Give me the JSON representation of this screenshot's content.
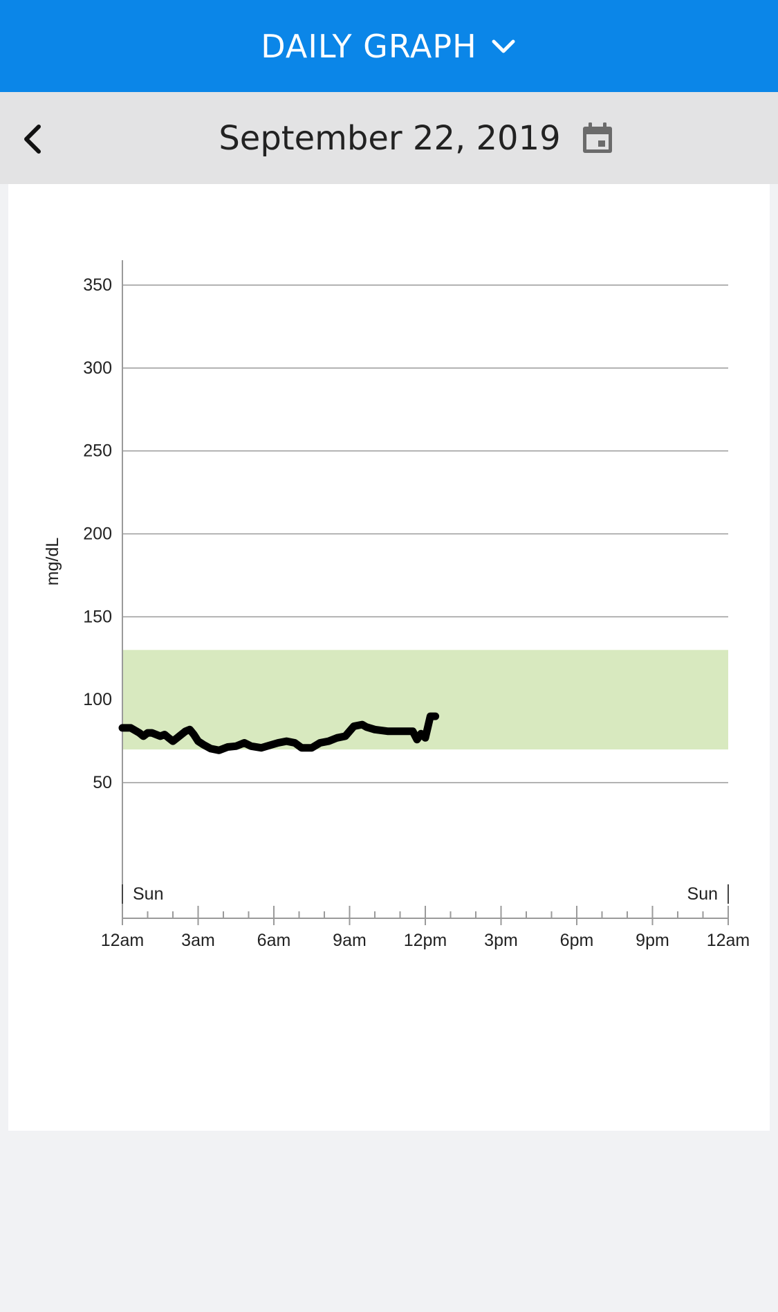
{
  "header": {
    "title": "DAILY GRAPH",
    "dropdown_icon": "chevron-down-icon"
  },
  "datebar": {
    "date": "September 22, 2019",
    "back_icon": "chevron-left-icon",
    "calendar_icon": "calendar-icon"
  },
  "colors": {
    "header_bg": "#0b86e8",
    "target_range": "#d8e9bf",
    "glucose_line": "#000000"
  },
  "chart_data": {
    "type": "line",
    "ylabel": "mg/dL",
    "ylim": [
      0,
      360
    ],
    "yticks": [
      50,
      100,
      150,
      200,
      250,
      300,
      350
    ],
    "xlim": [
      0,
      24
    ],
    "xticks": [
      {
        "h": 0,
        "label": "12am"
      },
      {
        "h": 3,
        "label": "3am"
      },
      {
        "h": 6,
        "label": "6am"
      },
      {
        "h": 9,
        "label": "9am"
      },
      {
        "h": 12,
        "label": "12pm"
      },
      {
        "h": 15,
        "label": "3pm"
      },
      {
        "h": 18,
        "label": "6pm"
      },
      {
        "h": 21,
        "label": "9pm"
      },
      {
        "h": 24,
        "label": "12am"
      }
    ],
    "day_labels": [
      {
        "h": 0,
        "label": "Sun"
      },
      {
        "h": 24,
        "label": "Sun"
      }
    ],
    "target_range": [
      70,
      130
    ],
    "series": [
      {
        "x": [
          0,
          0.33,
          0.67,
          0.83,
          1.0,
          1.17,
          1.5,
          1.67,
          1.83,
          2.0,
          2.17,
          2.5,
          2.67,
          2.83,
          3.0,
          3.2,
          3.5,
          3.83,
          4.17,
          4.5,
          4.83,
          5.1,
          5.5,
          5.83,
          6.17,
          6.5,
          6.83,
          7.1,
          7.5,
          7.83,
          8.17,
          8.5,
          8.83,
          9.17,
          9.5,
          9.67,
          10.0,
          10.5,
          10.83,
          11.17,
          11.5,
          11.67,
          11.83,
          12.0,
          12.2,
          12.4
        ],
        "y": [
          83,
          83,
          80,
          78,
          80,
          80,
          78,
          79,
          77,
          75,
          77,
          81,
          82,
          79,
          75,
          73,
          70.5,
          69.5,
          71.5,
          72,
          74,
          72,
          71,
          72.5,
          74,
          75,
          74,
          71,
          71,
          74,
          75,
          77,
          78,
          84,
          85,
          83.5,
          82,
          81,
          81,
          81,
          81,
          76,
          79.5,
          77,
          90,
          90
        ]
      }
    ]
  }
}
